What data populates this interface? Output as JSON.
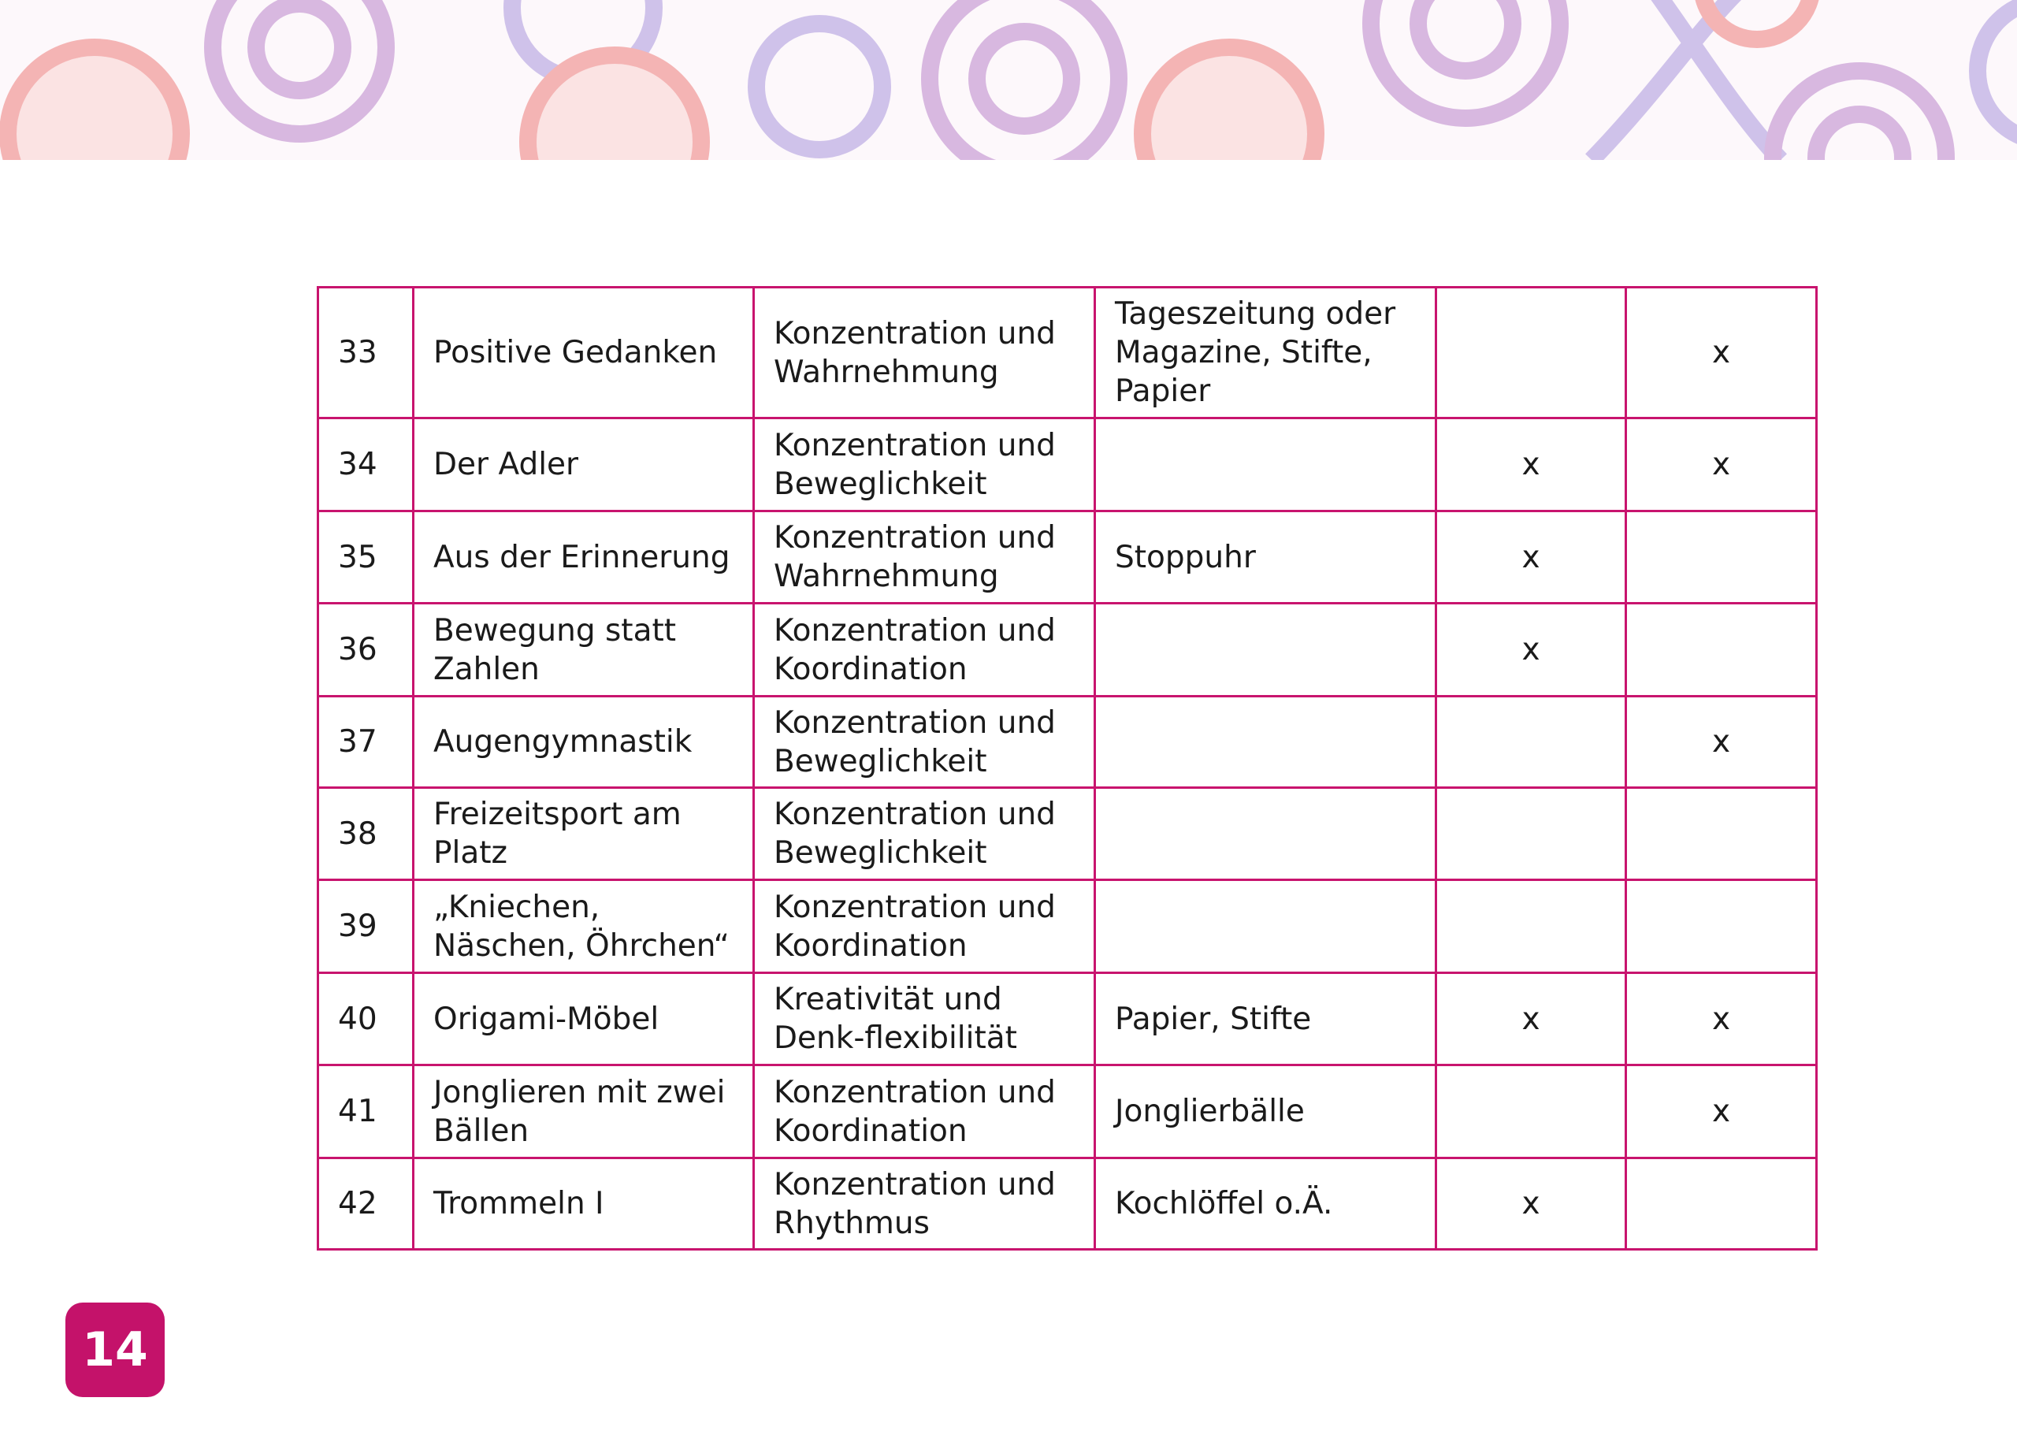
{
  "page_number": "14",
  "colors": {
    "accent": "#c4126a",
    "border": "#c8146e"
  },
  "rows": [
    {
      "nr": "33",
      "title": "Positive Gedanken",
      "area": "Konzentration und Wahrnehmung",
      "material": "Tageszeitung oder Magazine, Stifte, Papier",
      "col5": "",
      "col6": "x"
    },
    {
      "nr": "34",
      "title": "Der Adler",
      "area": "Konzentration und Beweglichkeit",
      "material": "",
      "col5": "x",
      "col6": "x"
    },
    {
      "nr": "35",
      "title": "Aus der Erinnerung",
      "area": "Konzentration und Wahrnehmung",
      "material": "Stoppuhr",
      "col5": "x",
      "col6": ""
    },
    {
      "nr": "36",
      "title": "Bewegung statt Zahlen",
      "area": "Konzentration und Koordination",
      "material": "",
      "col5": "x",
      "col6": ""
    },
    {
      "nr": "37",
      "title": "Augengymnastik",
      "area": "Konzentration und Beweglichkeit",
      "material": "",
      "col5": "",
      "col6": "x"
    },
    {
      "nr": "38",
      "title": "Freizeitsport am Platz",
      "area": "Konzentration und Beweglichkeit",
      "material": "",
      "col5": "",
      "col6": ""
    },
    {
      "nr": "39",
      "title": "„Kniechen, Näschen, Öhrchen“",
      "area": "Konzentration und Koordination",
      "material": "",
      "col5": "",
      "col6": ""
    },
    {
      "nr": "40",
      "title": "Origami-Möbel",
      "area": "Kreativität und Denk-flexibilität",
      "material": "Papier, Stifte",
      "col5": "x",
      "col6": "x"
    },
    {
      "nr": "41",
      "title": "Jonglieren mit zwei Bällen",
      "area": "Konzentration und Koordination",
      "material": "Jonglierbälle",
      "col5": "",
      "col6": "x"
    },
    {
      "nr": "42",
      "title": "Trommeln I",
      "area": "Konzentration und Rhythmus",
      "material": "Kochlöffel o.Ä.",
      "col5": "x",
      "col6": ""
    }
  ]
}
